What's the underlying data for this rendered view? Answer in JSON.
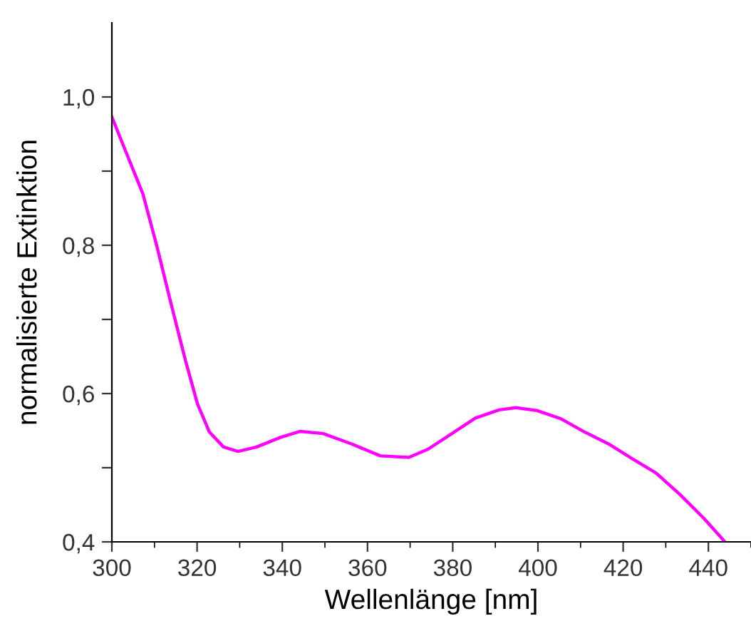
{
  "chart_data": {
    "type": "line",
    "xlabel": "Wellenlänge [nm]",
    "ylabel": "normalisierte Extinktion",
    "xlim": [
      300,
      450
    ],
    "ylim": [
      0.4,
      1.1
    ],
    "xticks": [
      300,
      320,
      340,
      360,
      380,
      400,
      420,
      440
    ],
    "yticks": [
      {
        "value": 0.4,
        "label": "0,4"
      },
      {
        "value": 0.5,
        "label": null
      },
      {
        "value": 0.6,
        "label": "0,6"
      },
      {
        "value": 0.7,
        "label": null
      },
      {
        "value": 0.8,
        "label": "0,8"
      },
      {
        "value": 0.9,
        "label": null
      },
      {
        "value": 1.0,
        "label": "1,0"
      }
    ],
    "grid": false,
    "legend": false,
    "marker": "none",
    "line_style": "solid",
    "series": [
      {
        "color": "#ff00ff",
        "x": [
          300,
          303.3,
          307.3,
          310.6,
          313.9,
          317.3,
          320.1,
          322.9,
          326.2,
          329.6,
          334,
          339.6,
          344.1,
          349.6,
          356.3,
          363,
          369.7,
          374.2,
          379.8,
          385.3,
          390.9,
          394.8,
          399.8,
          405.4,
          411,
          416.6,
          422.2,
          427.7,
          433.3,
          438.9,
          443.9
        ],
        "values": [
          0.973,
          0.926,
          0.869,
          0.798,
          0.721,
          0.644,
          0.586,
          0.548,
          0.528,
          0.522,
          0.528,
          0.541,
          0.549,
          0.546,
          0.532,
          0.516,
          0.514,
          0.525,
          0.546,
          0.567,
          0.578,
          0.581,
          0.577,
          0.566,
          0.548,
          0.532,
          0.512,
          0.493,
          0.464,
          0.432,
          0.4
        ]
      }
    ]
  }
}
